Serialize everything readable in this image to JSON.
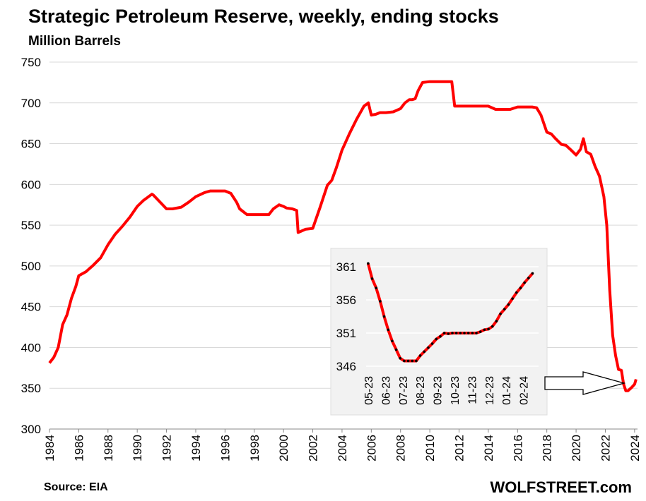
{
  "chart_data": [
    {
      "type": "line",
      "title": "Strategic Petroleum Reserve, weekly, ending stocks",
      "ylabel": "Million Barrels",
      "source": "Source: EIA",
      "brand": "WOLFSTREET.com",
      "xlim": [
        1984,
        2024.2
      ],
      "ylim": [
        300,
        750
      ],
      "yticks": [
        300,
        350,
        400,
        450,
        500,
        550,
        600,
        650,
        700,
        750
      ],
      "xticks": [
        1984,
        1986,
        1988,
        1990,
        1992,
        1994,
        1996,
        1998,
        2000,
        2002,
        2004,
        2006,
        2008,
        2010,
        2012,
        2014,
        2016,
        2018,
        2020,
        2022,
        2024
      ],
      "grid": true,
      "series_color": "#ff0000",
      "series": [
        {
          "x": [
            1984.0,
            1984.3,
            1984.6,
            1984.9,
            1985.2,
            1985.5,
            1985.8,
            1986.0,
            1986.5,
            1987.0,
            1987.5,
            1988.0,
            1988.5,
            1989.0,
            1989.5,
            1990.0,
            1990.4,
            1990.7,
            1991.0,
            1991.1,
            1992.0,
            1992.4,
            1993.0,
            1993.5,
            1994.0,
            1994.6,
            1995.0,
            1995.5,
            1996.0,
            1996.4,
            1996.8,
            1997.0,
            1997.5,
            1998.0,
            1998.5,
            1999.0,
            1999.3,
            1999.7,
            2000.0,
            2000.2,
            2000.6,
            2000.9,
            2001.0,
            2001.5,
            2002.0,
            2002.5,
            2003.0,
            2003.3,
            2003.6,
            2004.0,
            2004.5,
            2005.0,
            2005.5,
            2005.8,
            2006.0,
            2006.3,
            2006.6,
            2007.0,
            2007.5,
            2008.0,
            2008.3,
            2008.6,
            2008.8,
            2009.0,
            2009.2,
            2009.5,
            2010.0,
            2010.5,
            2011.0,
            2011.5,
            2011.7,
            2012.0,
            2012.5,
            2013.0,
            2013.5,
            2014.0,
            2014.5,
            2015.0,
            2015.5,
            2016.0,
            2016.5,
            2017.0,
            2017.3,
            2017.6,
            2018.0,
            2018.3,
            2018.6,
            2019.0,
            2019.3,
            2019.6,
            2020.0,
            2020.3,
            2020.5,
            2020.7,
            2020.9,
            2021.0,
            2021.3,
            2021.6,
            2021.9,
            2022.1,
            2022.3,
            2022.5,
            2022.7,
            2022.9,
            2023.1,
            2023.25,
            2023.4,
            2023.55,
            2023.8,
            2024.0,
            2024.1
          ],
          "values": [
            381,
            388,
            400,
            428,
            440,
            460,
            475,
            488,
            493,
            501,
            510,
            526,
            539,
            549,
            560,
            573,
            580,
            584,
            588,
            587,
            570,
            570,
            572,
            578,
            585,
            590,
            592,
            592,
            592,
            589,
            578,
            570,
            563,
            563,
            563,
            563,
            570,
            575,
            573,
            571,
            570,
            568,
            541,
            545,
            546,
            572,
            599,
            605,
            620,
            642,
            662,
            680,
            696,
            700,
            685,
            686,
            688,
            688,
            689,
            693,
            700,
            704,
            704,
            705,
            715,
            725,
            726,
            726,
            726,
            726,
            696,
            696,
            696,
            696,
            696,
            696,
            692,
            692,
            692,
            695,
            695,
            695,
            694,
            685,
            664,
            662,
            656,
            649,
            648,
            643,
            636,
            643,
            656,
            640,
            638,
            637,
            622,
            610,
            585,
            550,
            470,
            415,
            390,
            373,
            372,
            355,
            347,
            347,
            351,
            355,
            361
          ]
        }
      ]
    },
    {
      "type": "line",
      "title": "",
      "xlim": [
        0,
        43
      ],
      "ylim": [
        346,
        361
      ],
      "yticks": [
        346,
        351,
        356,
        361
      ],
      "xticks": [
        "05-23",
        "06-23",
        "07-23",
        "08-23",
        "09-23",
        "10-23",
        "11-23",
        "12-23",
        "01-24",
        "02-24"
      ],
      "grid": true,
      "line_color": "#ff0000",
      "marker_color": "#000000",
      "series": [
        {
          "values": [
            361.5,
            359.2,
            357.8,
            355.8,
            353.5,
            351.5,
            349.8,
            348.5,
            347.2,
            346.8,
            346.8,
            346.8,
            346.8,
            347.6,
            348.2,
            348.8,
            349.4,
            350.1,
            350.5,
            351.0,
            350.9,
            351.0,
            351.0,
            351.0,
            351.0,
            351.0,
            351.0,
            351.0,
            351.2,
            351.5,
            351.6,
            352.0,
            352.8,
            353.9,
            354.6,
            355.3,
            356.2,
            357.1,
            357.8,
            358.6,
            359.3,
            360.0
          ]
        }
      ]
    }
  ],
  "annotation": "arrow pointing from inset to 2023 low"
}
